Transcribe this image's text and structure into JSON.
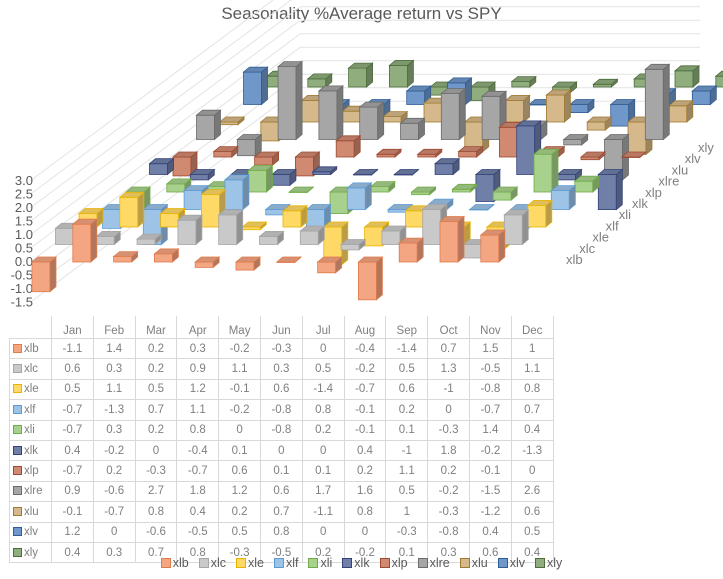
{
  "chart_data": {
    "type": "bar",
    "subtype": "3d-column-with-data-table",
    "title": "Seasonality %Average return vs SPY",
    "xlabel": "",
    "ylabel": "",
    "categories": [
      "Jan",
      "Feb",
      "Mar",
      "Apr",
      "May",
      "Jun",
      "Jul",
      "Aug",
      "Sep",
      "Oct",
      "Nov",
      "Dec"
    ],
    "ylim": [
      -1.5,
      3.0
    ],
    "yticks": [
      "3.0",
      "2.5",
      "2.0",
      "1.5",
      "1.0",
      "0.5",
      "0.0",
      "-0.5",
      "-1.0",
      "-1.5"
    ],
    "ytick_values": [
      3.0,
      2.5,
      2.0,
      1.5,
      1.0,
      0.5,
      0.0,
      -0.5,
      -1.0,
      -1.5
    ],
    "grid": true,
    "legend_position": "bottom",
    "series": [
      {
        "name": "xlb",
        "color": "#f4a582",
        "edge": "#e07b4a",
        "values": [
          -1.1,
          1.4,
          0.2,
          0.3,
          -0.2,
          -0.3,
          0,
          -0.4,
          -1.4,
          0.7,
          1.5,
          1
        ]
      },
      {
        "name": "xlc",
        "color": "#c9c9c9",
        "edge": "#a5a5a5",
        "values": [
          0.6,
          0.3,
          0.2,
          0.9,
          1.1,
          0.3,
          0.5,
          -0.2,
          0.5,
          1.3,
          -0.5,
          1.1
        ]
      },
      {
        "name": "xle",
        "color": "#ffd966",
        "edge": "#e8b400",
        "values": [
          0.5,
          1.1,
          0.5,
          1.2,
          -0.1,
          0.6,
          -1.4,
          -0.7,
          0.6,
          -1,
          -0.8,
          0.8
        ]
      },
      {
        "name": "xlf",
        "color": "#9dc3e6",
        "edge": "#5b9bd5",
        "values": [
          -0.7,
          -1.3,
          0.7,
          1.1,
          -0.2,
          -0.8,
          0.8,
          -0.1,
          0.2,
          0,
          -0.7,
          0.7
        ]
      },
      {
        "name": "xli",
        "color": "#a9d18e",
        "edge": "#70ad47",
        "values": [
          -0.7,
          0.3,
          0.2,
          0.8,
          0,
          -0.8,
          0.2,
          -0.1,
          0.1,
          -0.3,
          1.4,
          0.4
        ]
      },
      {
        "name": "xlk",
        "color": "#6f7fa8",
        "edge": "#34427a",
        "values": [
          0.4,
          -0.2,
          0,
          -0.4,
          0.1,
          0,
          0,
          0.4,
          -1,
          1.8,
          -0.2,
          -1.3
        ]
      },
      {
        "name": "xlp",
        "color": "#d08a72",
        "edge": "#9e4a30",
        "values": [
          -0.7,
          0.2,
          -0.3,
          -0.7,
          0.6,
          0.1,
          0.1,
          0.2,
          1.1,
          0.2,
          -0.1,
          0
        ]
      },
      {
        "name": "xlre",
        "color": "#a6a6a6",
        "edge": "#6b6b6b",
        "values": [
          0.9,
          -0.6,
          2.7,
          1.8,
          1.2,
          0.6,
          1.7,
          1.6,
          0.5,
          -0.2,
          -1.5,
          2.6
        ]
      },
      {
        "name": "xlu",
        "color": "#d6b98a",
        "edge": "#a07a30",
        "values": [
          -0.1,
          -0.7,
          0.8,
          0.4,
          0.2,
          0.7,
          -1.1,
          0.8,
          1,
          -0.3,
          -1.2,
          0.6
        ]
      },
      {
        "name": "xlv",
        "color": "#6f97c9",
        "edge": "#2f5c94",
        "values": [
          1.2,
          0,
          -0.6,
          -0.5,
          0.5,
          0.8,
          0,
          0,
          -0.3,
          -0.8,
          0.4,
          0.5
        ]
      },
      {
        "name": "xly",
        "color": "#8fad7d",
        "edge": "#4d6e3c",
        "values": [
          0.4,
          0.3,
          0.7,
          0.8,
          -0.3,
          -0.5,
          0.2,
          -0.2,
          0.1,
          0.3,
          0.6,
          0.4
        ]
      }
    ]
  }
}
